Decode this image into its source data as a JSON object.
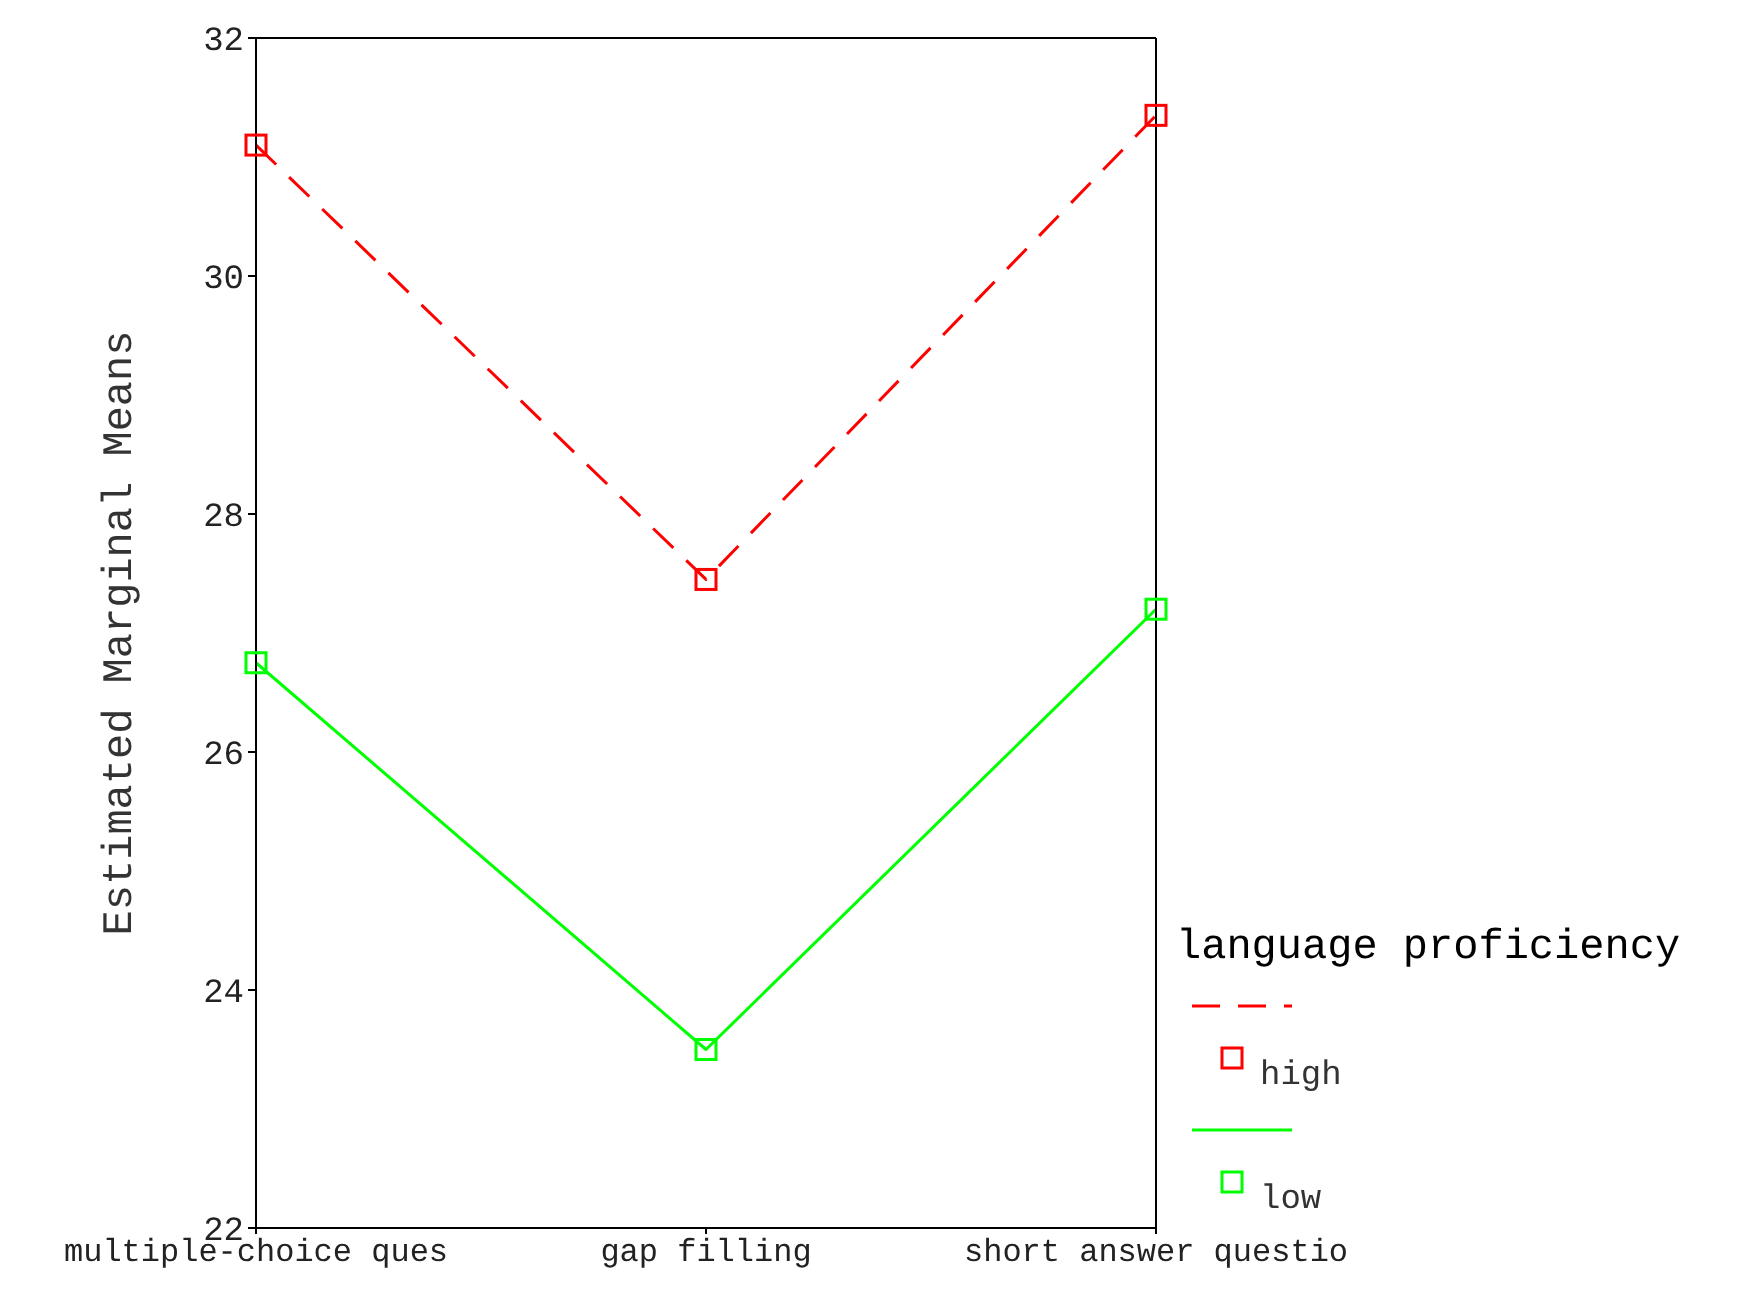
{
  "chart_data": {
    "type": "line",
    "ylabel": "Estimated Marginal Means",
    "legend_title": "language proficiency",
    "categories": [
      "multiple-choice ques",
      "gap filling",
      "short answer questio"
    ],
    "series": [
      {
        "name": "high",
        "color": "#ff0000",
        "line_style": "dashed",
        "values": [
          31.1,
          27.45,
          31.35
        ]
      },
      {
        "name": "low",
        "color": "#00ff00",
        "line_style": "solid",
        "values": [
          26.75,
          23.5,
          27.2
        ]
      }
    ],
    "ylim": [
      22,
      32
    ],
    "yticks": [
      22,
      24,
      26,
      28,
      30,
      32
    ],
    "marker": "square",
    "grid": false,
    "legend": "bottom right"
  }
}
